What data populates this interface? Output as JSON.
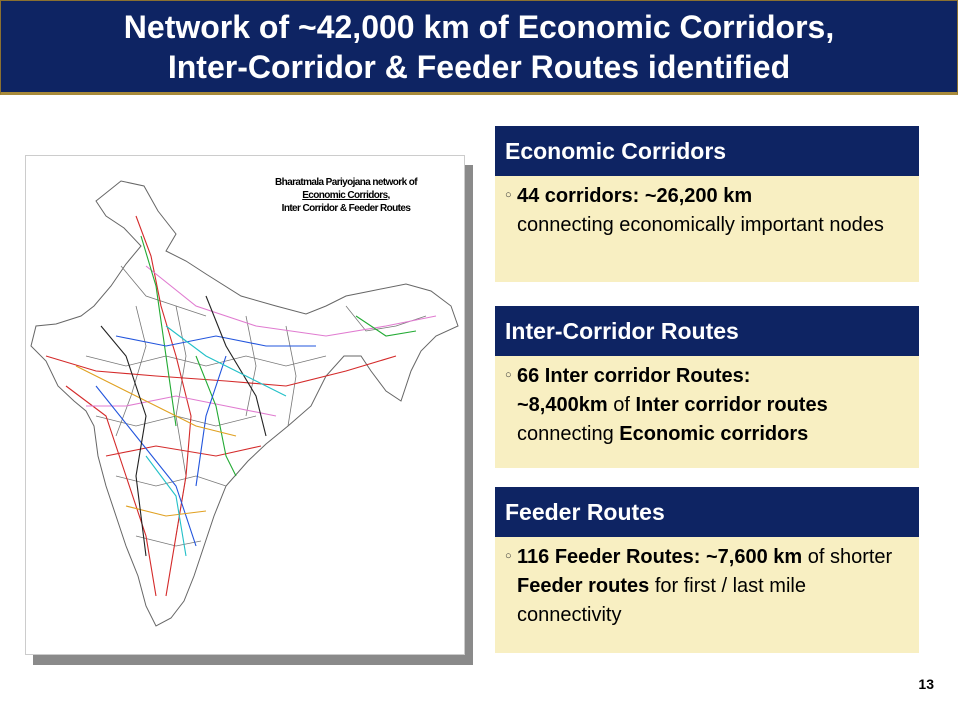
{
  "slide": {
    "title_line1": "Network of ~42,000 km of Economic Corridors,",
    "title_line2": "Inter-Corridor & Feeder Routes identified",
    "page_number": "13"
  },
  "map": {
    "caption_line1": "Bharatmala Pariyojana network of",
    "caption_line2": "Economic Corridors,",
    "caption_line3": "Inter Corridor & Feeder Routes",
    "route_colors": [
      "#d42a2a",
      "#e07bd0",
      "#22aa33",
      "#2255dd",
      "#e0a020",
      "#222222",
      "#22c0c8"
    ]
  },
  "panels": {
    "economic": {
      "heading": "Economic Corridors",
      "bullet": "○",
      "bold_1": "44 corridors: ~26,200 km",
      "text_1": "connecting economically important nodes"
    },
    "inter": {
      "heading": "Inter-Corridor Routes",
      "bullet": "○",
      "bold_1": "66 Inter corridor Routes:",
      "bold_2": "~8,400km",
      "text_1": " of ",
      "bold_3": "Inter corridor routes",
      "text_2": "connecting ",
      "bold_4": "Economic corridors"
    },
    "feeder": {
      "heading": "Feeder Routes",
      "bullet": "○",
      "bold_1": "116 Feeder Routes: ~7,600 km",
      "text_1": " of shorter ",
      "bold_2": "Feeder routes",
      "text_2": " for first / last mile connectivity"
    }
  }
}
